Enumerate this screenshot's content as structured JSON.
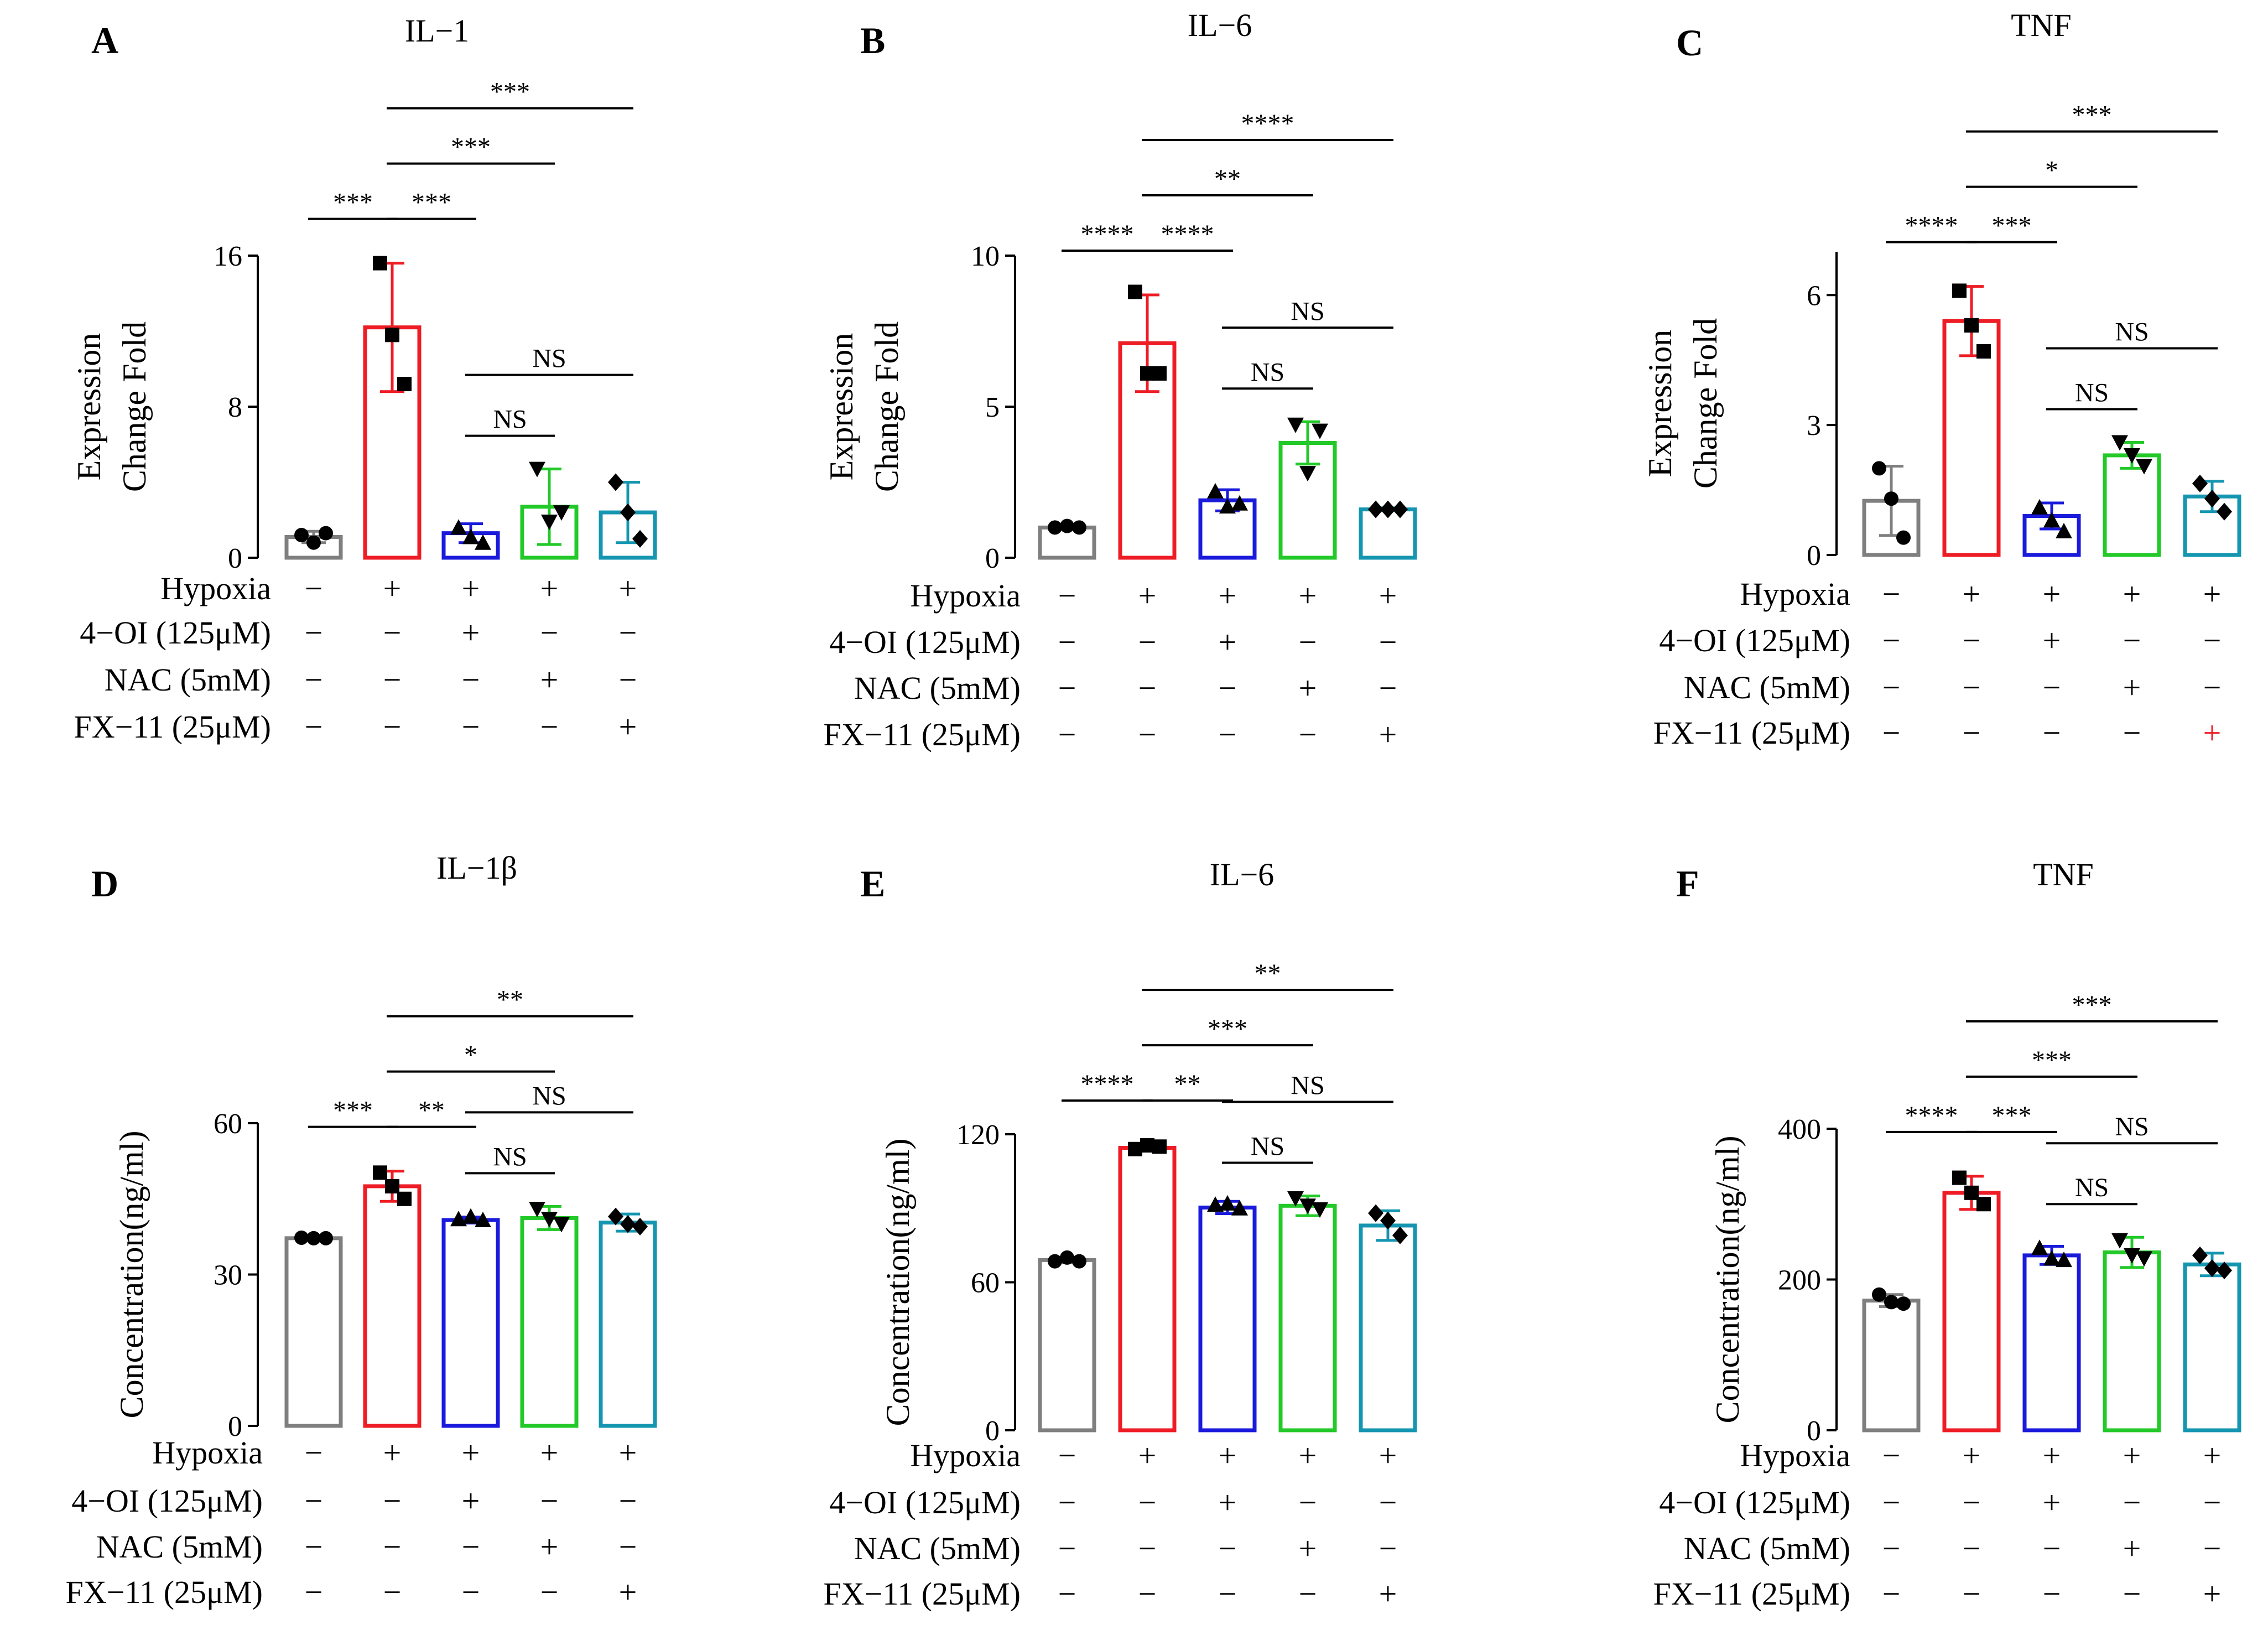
{
  "figure": {
    "conditions": [
      {
        "label": "Hypoxia",
        "signs": [
          "−",
          "+",
          "+",
          "+",
          "+"
        ]
      },
      {
        "label": "4−OI (125μM)",
        "signs": [
          "−",
          "−",
          "+",
          "−",
          "−"
        ]
      },
      {
        "label": "NAC (5mM)",
        "signs": [
          "−",
          "−",
          "−",
          "+",
          "−"
        ]
      },
      {
        "label": "FX−11 (25μM)",
        "signs": [
          "−",
          "−",
          "−",
          "−",
          "+"
        ]
      }
    ],
    "colors": {
      "g1": "#7f7f7f",
      "g2": "#ee1c25",
      "g3": "#1a1adc",
      "g4": "#22c928",
      "g5": "#1596b0",
      "accent_sign": "#ee1c25"
    }
  },
  "chart_data": [
    {
      "panel": "A",
      "type": "bar",
      "title": "IL−1",
      "ylabel_lines": [
        "Expression",
        "Change Fold"
      ],
      "ylim": [
        0,
        16
      ],
      "yticks": [
        0,
        8,
        16
      ],
      "groups": [
        {
          "mean": 1.1,
          "err": 0.3,
          "points": [
            1.2,
            0.8,
            1.3
          ],
          "marker": "circle"
        },
        {
          "mean": 12.2,
          "err": 3.4,
          "points": [
            15.6,
            11.8,
            9.2
          ],
          "marker": "square"
        },
        {
          "mean": 1.3,
          "err": 0.5,
          "points": [
            1.6,
            1.1,
            0.8
          ],
          "marker": "triangle-up"
        },
        {
          "mean": 2.7,
          "err": 2.0,
          "points": [
            4.7,
            1.9,
            2.4
          ],
          "marker": "triangle-down"
        },
        {
          "mean": 2.4,
          "err": 1.6,
          "points": [
            4.0,
            2.4,
            1.0
          ],
          "marker": "diamond"
        }
      ],
      "comparisons": [
        {
          "from": 1,
          "to": 2,
          "label": "***"
        },
        {
          "from": 2,
          "to": 3,
          "label": "***"
        },
        {
          "from": 2,
          "to": 4,
          "label": "***"
        },
        {
          "from": 2,
          "to": 5,
          "label": "***"
        },
        {
          "from": 3,
          "to": 4,
          "label": "NS"
        },
        {
          "from": 3,
          "to": 5,
          "label": "NS"
        }
      ],
      "plus_colors": [
        "#000000",
        "#000000",
        "#000000",
        "#000000",
        "#000000"
      ]
    },
    {
      "panel": "B",
      "type": "bar",
      "title": "IL−6",
      "ylabel_lines": [
        "Expression",
        "Change Fold"
      ],
      "ylim": [
        0,
        10
      ],
      "yticks": [
        0,
        5,
        10
      ],
      "groups": [
        {
          "mean": 1.0,
          "err": 0.05,
          "points": [
            1.0,
            1.05,
            1.0
          ],
          "marker": "circle"
        },
        {
          "mean": 7.1,
          "err": 1.6,
          "points": [
            8.8,
            6.1,
            6.1
          ],
          "marker": "square"
        },
        {
          "mean": 1.9,
          "err": 0.35,
          "points": [
            2.2,
            1.7,
            1.8
          ],
          "marker": "triangle-up"
        },
        {
          "mean": 3.8,
          "err": 0.7,
          "points": [
            4.4,
            2.8,
            4.2
          ],
          "marker": "triangle-down"
        },
        {
          "mean": 1.6,
          "err": 0.05,
          "points": [
            1.6,
            1.6,
            1.6
          ],
          "marker": "diamond"
        }
      ],
      "comparisons": [
        {
          "from": 1,
          "to": 2,
          "label": "****"
        },
        {
          "from": 2,
          "to": 3,
          "label": "****"
        },
        {
          "from": 2,
          "to": 4,
          "label": "**"
        },
        {
          "from": 2,
          "to": 5,
          "label": "****"
        },
        {
          "from": 3,
          "to": 4,
          "label": "NS"
        },
        {
          "from": 3,
          "to": 5,
          "label": "NS"
        }
      ],
      "plus_colors": [
        "#000000",
        "#000000",
        "#000000",
        "#000000",
        "#000000"
      ]
    },
    {
      "panel": "C",
      "type": "bar",
      "title": "TNF",
      "ylabel_lines": [
        "Expression",
        "Change Fold"
      ],
      "ylim": [
        0,
        7
      ],
      "yticks": [
        0,
        3,
        6
      ],
      "groups": [
        {
          "mean": 1.25,
          "err": 0.8,
          "points": [
            2.0,
            1.3,
            0.4
          ],
          "marker": "circle"
        },
        {
          "mean": 5.4,
          "err": 0.8,
          "points": [
            6.1,
            5.3,
            4.7
          ],
          "marker": "square"
        },
        {
          "mean": 0.9,
          "err": 0.3,
          "points": [
            1.1,
            0.8,
            0.55
          ],
          "marker": "triangle-up"
        },
        {
          "mean": 2.3,
          "err": 0.3,
          "points": [
            2.6,
            2.3,
            2.05
          ],
          "marker": "triangle-down"
        },
        {
          "mean": 1.35,
          "err": 0.35,
          "points": [
            1.65,
            1.3,
            1.0
          ],
          "marker": "diamond"
        }
      ],
      "comparisons": [
        {
          "from": 1,
          "to": 2,
          "label": "****"
        },
        {
          "from": 2,
          "to": 3,
          "label": "***"
        },
        {
          "from": 2,
          "to": 4,
          "label": "*"
        },
        {
          "from": 2,
          "to": 5,
          "label": "***"
        },
        {
          "from": 3,
          "to": 4,
          "label": "NS"
        },
        {
          "from": 3,
          "to": 5,
          "label": "NS"
        }
      ],
      "plus_colors": [
        "#000000",
        "#000000",
        "#000000",
        "#000000",
        "#ee1c25"
      ]
    },
    {
      "panel": "D",
      "type": "bar",
      "title": "IL−1β",
      "ylabel_lines": [
        "Concentration(ng/ml)"
      ],
      "ylim": [
        0,
        60
      ],
      "yticks": [
        0,
        30,
        60
      ],
      "groups": [
        {
          "mean": 37.2,
          "err": 0.4,
          "points": [
            37.3,
            37.2,
            37.2
          ],
          "marker": "circle"
        },
        {
          "mean": 47.5,
          "err": 3.0,
          "points": [
            50.2,
            47.5,
            45.0
          ],
          "marker": "square"
        },
        {
          "mean": 40.8,
          "err": 0.6,
          "points": [
            41.0,
            41.5,
            40.8
          ],
          "marker": "triangle-up"
        },
        {
          "mean": 41.2,
          "err": 2.3,
          "points": [
            43.0,
            41.0,
            40.0
          ],
          "marker": "triangle-down"
        },
        {
          "mean": 40.3,
          "err": 1.7,
          "points": [
            41.5,
            40.0,
            39.5
          ],
          "marker": "diamond"
        }
      ],
      "comparisons": [
        {
          "from": 1,
          "to": 2,
          "label": "***"
        },
        {
          "from": 2,
          "to": 3,
          "label": "**"
        },
        {
          "from": 2,
          "to": 4,
          "label": "*"
        },
        {
          "from": 2,
          "to": 5,
          "label": "**"
        },
        {
          "from": 3,
          "to": 4,
          "label": "NS"
        },
        {
          "from": 3,
          "to": 5,
          "label": "NS"
        }
      ],
      "plus_colors": [
        "#000000",
        "#000000",
        "#000000",
        "#000000",
        "#000000"
      ]
    },
    {
      "panel": "E",
      "type": "bar",
      "title": "IL−6",
      "ylabel_lines": [
        "Concentration(ng/ml)"
      ],
      "ylim": [
        0,
        120
      ],
      "yticks": [
        0,
        60,
        120
      ],
      "groups": [
        {
          "mean": 69.0,
          "err": 1.0,
          "points": [
            68.5,
            70.0,
            68.5
          ],
          "marker": "circle"
        },
        {
          "mean": 114.5,
          "err": 1.2,
          "points": [
            114.0,
            115.5,
            115.0
          ],
          "marker": "square"
        },
        {
          "mean": 90.3,
          "err": 2.5,
          "points": [
            91.5,
            92.0,
            90.0
          ],
          "marker": "triangle-up"
        },
        {
          "mean": 91.0,
          "err": 4.0,
          "points": [
            94.0,
            91.0,
            89.5
          ],
          "marker": "triangle-down"
        },
        {
          "mean": 83.0,
          "err": 6.0,
          "points": [
            88.0,
            85.0,
            79.0
          ],
          "marker": "diamond"
        }
      ],
      "comparisons": [
        {
          "from": 1,
          "to": 2,
          "label": "****"
        },
        {
          "from": 2,
          "to": 3,
          "label": "**"
        },
        {
          "from": 2,
          "to": 4,
          "label": "***"
        },
        {
          "from": 2,
          "to": 5,
          "label": "**"
        },
        {
          "from": 3,
          "to": 4,
          "label": "NS"
        },
        {
          "from": 3,
          "to": 5,
          "label": "NS"
        }
      ],
      "plus_colors": [
        "#000000",
        "#000000",
        "#000000",
        "#000000",
        "#000000"
      ]
    },
    {
      "panel": "F",
      "type": "bar",
      "title": "TNF",
      "ylabel_lines": [
        "Concentration(ng/ml)"
      ],
      "ylim": [
        0,
        400
      ],
      "yticks": [
        0,
        200,
        400
      ],
      "groups": [
        {
          "mean": 172.0,
          "err": 8.0,
          "points": [
            180.0,
            170.0,
            168.0
          ],
          "marker": "circle"
        },
        {
          "mean": 315.0,
          "err": 22.0,
          "points": [
            335.0,
            315.0,
            300.0
          ],
          "marker": "square"
        },
        {
          "mean": 232.0,
          "err": 12.0,
          "points": [
            242.0,
            228.0,
            226.0
          ],
          "marker": "triangle-up"
        },
        {
          "mean": 236.0,
          "err": 20.0,
          "points": [
            252.0,
            232.0,
            228.0
          ],
          "marker": "triangle-down"
        },
        {
          "mean": 220.0,
          "err": 15.0,
          "points": [
            232.0,
            215.0,
            212.0
          ],
          "marker": "diamond"
        }
      ],
      "comparisons": [
        {
          "from": 1,
          "to": 2,
          "label": "****"
        },
        {
          "from": 2,
          "to": 3,
          "label": "***"
        },
        {
          "from": 2,
          "to": 4,
          "label": "***"
        },
        {
          "from": 2,
          "to": 5,
          "label": "***"
        },
        {
          "from": 3,
          "to": 4,
          "label": "NS"
        },
        {
          "from": 3,
          "to": 5,
          "label": "NS"
        }
      ],
      "plus_colors": [
        "#000000",
        "#000000",
        "#000000",
        "#000000",
        "#000000"
      ]
    }
  ]
}
